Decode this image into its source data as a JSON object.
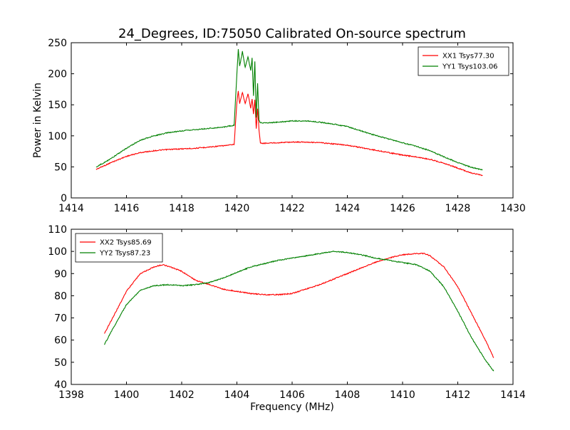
{
  "figure": {
    "title": "24_Degrees, ID:75050 Calibrated On-source spectrum",
    "background": "#ffffff"
  },
  "chart_data": [
    {
      "type": "line",
      "title": "24_Degrees, ID:75050 Calibrated On-source spectrum",
      "xlabel": "",
      "ylabel": "Power in Kelvin",
      "xlim": [
        1414,
        1430
      ],
      "ylim": [
        0,
        250
      ],
      "xticks": [
        1414,
        1416,
        1418,
        1420,
        1422,
        1424,
        1426,
        1428,
        1430
      ],
      "yticks": [
        0,
        50,
        100,
        150,
        200,
        250
      ],
      "grid": false,
      "legend_position": "top-right",
      "series": [
        {
          "name": "XX1 Tsys77.30",
          "color": "#ff0000",
          "x": [
            1414.9,
            1415.2,
            1415.5,
            1416.0,
            1416.5,
            1417.0,
            1417.5,
            1418.0,
            1418.5,
            1419.0,
            1419.5,
            1419.9,
            1420.0,
            1420.05,
            1420.1,
            1420.2,
            1420.3,
            1420.4,
            1420.5,
            1420.55,
            1420.6,
            1420.65,
            1420.7,
            1420.75,
            1420.8,
            1420.85,
            1421.0,
            1421.5,
            1422.0,
            1422.5,
            1423.0,
            1423.5,
            1424.0,
            1424.5,
            1425.0,
            1425.5,
            1426.0,
            1426.5,
            1427.0,
            1427.5,
            1428.0,
            1428.5,
            1428.9
          ],
          "y": [
            46,
            52,
            58,
            67,
            73,
            76,
            78,
            79,
            80,
            82,
            84,
            86,
            155,
            172,
            152,
            170,
            152,
            168,
            145,
            160,
            135,
            158,
            112,
            144,
            110,
            88,
            88,
            89,
            90,
            90,
            89,
            87,
            85,
            81,
            77,
            73,
            69,
            66,
            62,
            56,
            48,
            40,
            36
          ]
        },
        {
          "name": "YY1 Tsys103.06",
          "color": "#008000",
          "x": [
            1414.9,
            1415.2,
            1415.5,
            1416.0,
            1416.5,
            1417.0,
            1417.5,
            1418.0,
            1418.5,
            1419.0,
            1419.5,
            1419.9,
            1420.0,
            1420.05,
            1420.1,
            1420.2,
            1420.3,
            1420.4,
            1420.5,
            1420.55,
            1420.6,
            1420.65,
            1420.7,
            1420.75,
            1420.8,
            1420.85,
            1421.0,
            1421.5,
            1422.0,
            1422.5,
            1423.0,
            1423.5,
            1424.0,
            1424.5,
            1425.0,
            1425.5,
            1426.0,
            1426.5,
            1427.0,
            1427.5,
            1428.0,
            1428.5,
            1428.9
          ],
          "y": [
            50,
            57,
            65,
            80,
            93,
            100,
            105,
            108,
            110,
            112,
            114,
            117,
            200,
            240,
            212,
            236,
            210,
            228,
            205,
            225,
            165,
            220,
            130,
            185,
            125,
            121,
            121,
            122,
            124,
            124,
            122,
            119,
            115,
            108,
            101,
            95,
            89,
            83,
            76,
            66,
            57,
            49,
            45
          ]
        }
      ]
    },
    {
      "type": "line",
      "title": "",
      "xlabel": "Frequency (MHz)",
      "ylabel": "",
      "xlim": [
        1398,
        1414
      ],
      "ylim": [
        40,
        110
      ],
      "xticks": [
        1398,
        1400,
        1402,
        1404,
        1406,
        1408,
        1410,
        1412,
        1414
      ],
      "yticks": [
        40,
        50,
        60,
        70,
        80,
        90,
        100,
        110
      ],
      "grid": false,
      "legend_position": "top-left",
      "series": [
        {
          "name": "XX2 Tsys85.69",
          "color": "#ff0000",
          "x": [
            1399.2,
            1399.5,
            1400.0,
            1400.5,
            1401.0,
            1401.3,
            1401.6,
            1402.0,
            1402.5,
            1403.0,
            1403.5,
            1404.0,
            1404.5,
            1405.0,
            1405.5,
            1406.0,
            1406.5,
            1407.0,
            1407.5,
            1408.0,
            1408.5,
            1409.0,
            1409.5,
            1410.0,
            1410.5,
            1410.8,
            1411.0,
            1411.5,
            1412.0,
            1412.5,
            1413.0,
            1413.3
          ],
          "y": [
            63,
            70,
            82,
            90,
            93,
            94,
            93,
            91,
            87,
            85,
            83,
            82,
            81,
            80.5,
            80.5,
            81,
            83,
            85,
            87.5,
            90,
            92.5,
            95,
            97,
            98.5,
            99,
            99,
            98,
            93,
            84,
            72,
            60,
            52
          ]
        },
        {
          "name": "YY2 Tsys87.23",
          "color": "#008000",
          "x": [
            1399.2,
            1399.5,
            1400.0,
            1400.5,
            1401.0,
            1401.5,
            1402.0,
            1402.5,
            1403.0,
            1403.5,
            1404.0,
            1404.5,
            1405.0,
            1405.5,
            1406.0,
            1406.5,
            1407.0,
            1407.5,
            1408.0,
            1408.5,
            1409.0,
            1409.5,
            1410.0,
            1410.5,
            1411.0,
            1411.5,
            1412.0,
            1412.5,
            1413.0,
            1413.3
          ],
          "y": [
            58,
            65,
            76,
            82.5,
            84.5,
            85,
            84.5,
            85,
            86,
            88,
            90.5,
            93,
            94.5,
            96,
            97,
            98,
            99,
            100,
            99.5,
            98.5,
            97,
            96,
            95,
            94,
            91,
            84,
            73,
            61,
            51,
            46
          ]
        }
      ]
    }
  ]
}
